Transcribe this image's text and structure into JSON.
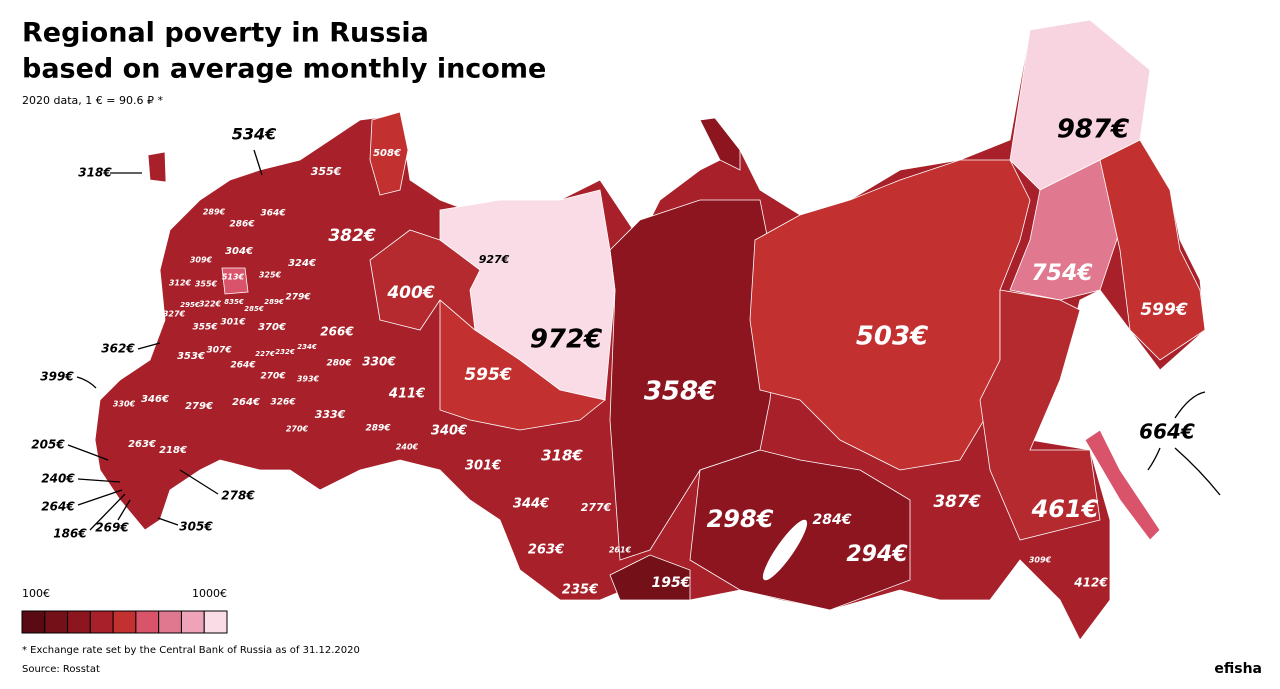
{
  "header": {
    "title_line1": "Regional poverty in Russia",
    "title_line2": "based on average monthly income",
    "subtitle": "2020 data, 1 € = 90.6 ₽ *"
  },
  "regions": [
    "987€",
    "754€",
    "599€",
    "972€",
    "503€",
    "358€",
    "595€",
    "298€",
    "294€",
    "461€",
    "387€",
    "284€",
    "412€",
    "309€",
    "664€",
    "195€",
    "235€",
    "263€",
    "261€",
    "344€",
    "277€",
    "318€",
    "301€",
    "340€",
    "411€",
    "400€",
    "382€",
    "508€",
    "355€",
    "534€",
    "318€",
    "927€",
    "330€",
    "280€",
    "266€",
    "333€",
    "289€",
    "240€",
    "270€",
    "326€",
    "393€",
    "264€",
    "270€",
    "264€",
    "227€",
    "232€",
    "234€",
    "370€",
    "301€",
    "307€",
    "353€",
    "355€",
    "327€",
    "295€",
    "322€",
    "835€",
    "285€",
    "289€",
    "279€",
    "312€",
    "355€",
    "513€",
    "309€",
    "325€",
    "324€",
    "304€",
    "286€",
    "289€",
    "364€",
    "346€",
    "330€",
    "279€",
    "263€",
    "218€",
    "362€",
    "399€",
    "205€",
    "240€",
    "264€",
    "186€",
    "269€",
    "305€",
    "278€"
  ],
  "legend": {
    "min_label": "100€",
    "max_label": "1000€",
    "colors": [
      "#5a0a12",
      "#741018",
      "#8c1520",
      "#a8212a",
      "#c2302f",
      "#d9546b",
      "#e0788f",
      "#eea3b9",
      "#f9dce5"
    ]
  },
  "footer": {
    "note": "* Exchange rate set by the Central Bank of Russia as of 31.12.2020",
    "source": "Source: Rosstat",
    "brand": "efisha"
  }
}
